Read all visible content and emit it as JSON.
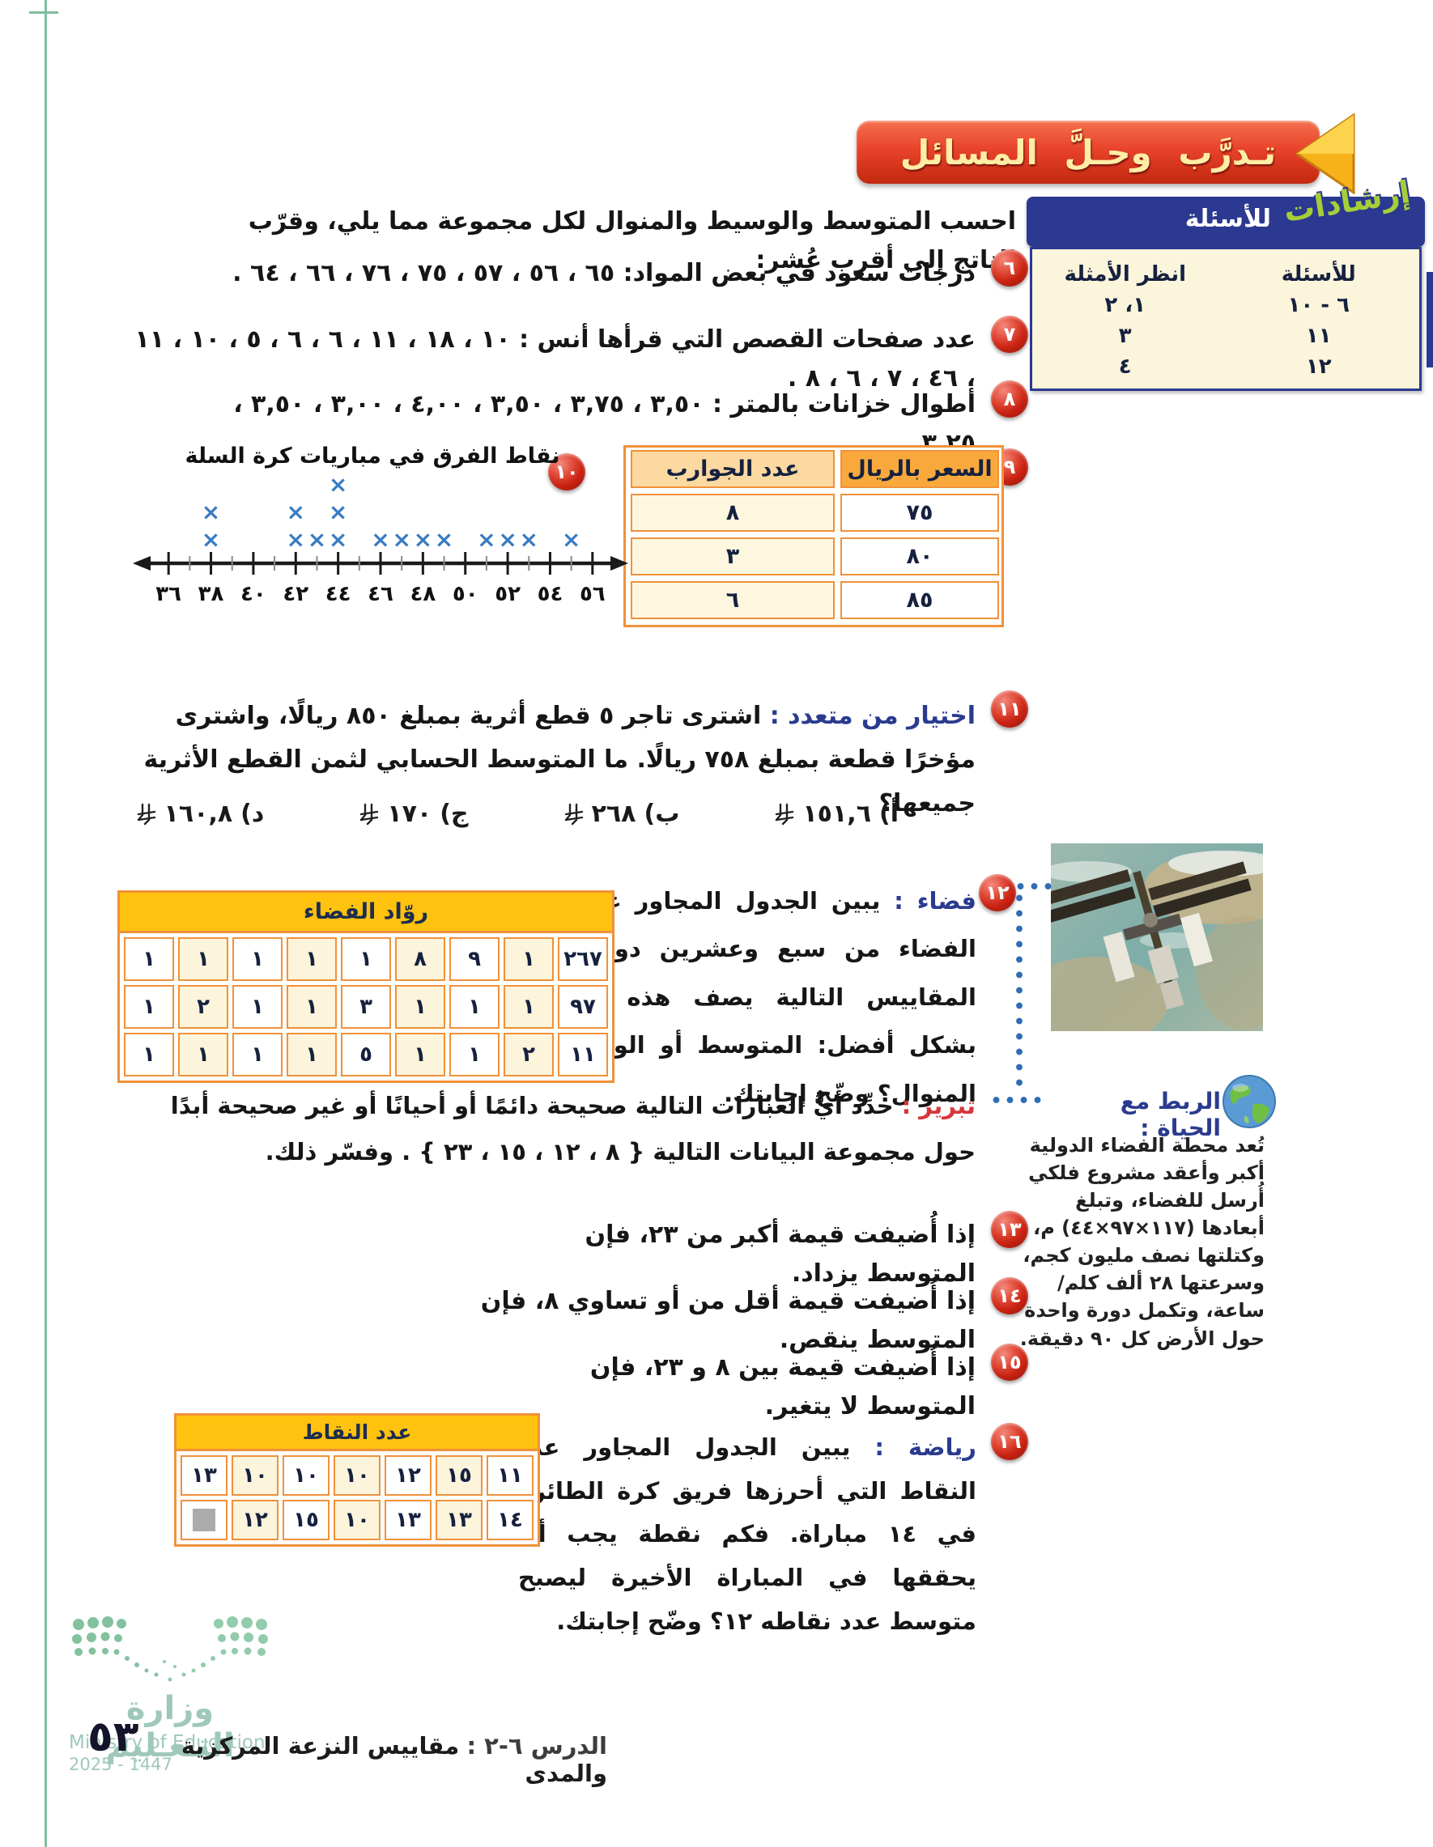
{
  "banner": {
    "title": "تـدرَّب وحـلَّ المسائل"
  },
  "intro": "احسب المتوسط والوسيط والمنوال لكل مجموعة مما يلي، وقرّب الناتج إلى أقرب عُشر:",
  "hints": {
    "badge": "إرشادات",
    "title": "للأسئلة",
    "col_questions": "للأسئلة",
    "col_examples": "انظر الأمثلة",
    "rows": [
      [
        "٦ - ١٠",
        "١، ٢"
      ],
      [
        "١١",
        "٣"
      ],
      [
        "١٢",
        "٤"
      ]
    ]
  },
  "q6": {
    "num": "٦",
    "text": "درجات سعود في بعض المواد: ٦٥ ، ٥٦ ، ٥٧ ، ٧٥ ، ٧٦ ، ٦٦ ، ٦٤ ."
  },
  "q7": {
    "num": "٧",
    "text": "عدد صفحات القصص التي قرأها أنس : ١٠ ، ١٨ ، ١١ ، ٦ ، ٦ ، ٥ ، ١٠ ، ١١ ، ٤٦ ، ٧ ، ٦ ، ٨ ."
  },
  "q8": {
    "num": "٨",
    "text": "أطوال خزانات بالمتر : ٣,٥٠ ، ٣,٧٥ ، ٣,٥٠ ، ٤,٠٠ ، ٣,٠٠ ، ٣,٥٠ ، ٣,٢٥ ."
  },
  "q9": {
    "num": "٩",
    "col_price": "السعر بالريال",
    "col_socks": "عدد الجوارب",
    "rows": [
      [
        "٧٥",
        "٨"
      ],
      [
        "٨٠",
        "٣"
      ],
      [
        "٨٥",
        "٦"
      ]
    ]
  },
  "q10": {
    "num": "١٠",
    "title": "نقاط الفرق في مباريات كرة السلة"
  },
  "q11": {
    "num": "١١",
    "label": "اختيار من متعدد :",
    "text": "اشترى تاجر ٥ قطع أثرية بمبلغ ٨٥٠ ريالًا، واشترى مؤخرًا قطعة بمبلغ ٧٥٨ ريالًا. ما المتوسط الحسابي لثمن القطع الأثرية جميعها؟",
    "currency": "ريال سعودي",
    "choices": [
      {
        "key": "أ)",
        "value": "١٥١,٦"
      },
      {
        "key": "ب)",
        "value": "٢٦٨"
      },
      {
        "key": "ج)",
        "value": "١٧٠"
      },
      {
        "key": "د)",
        "value": "١٦٠,٨"
      }
    ]
  },
  "q12": {
    "num": "١٢",
    "label": "فضاء :",
    "text": "يبين الجدول المجاور عدد روّاد الفضاء من سبع وعشرين دولة. فأيّ المقاييس التالية يصف هذه البيانات بشكل أفضل: المتوسط أو الوسيط أو المنوال؟ وضّح إجابتك.",
    "table_title": "روّاد الفضاء",
    "table_rows": [
      [
        "٢٦٧",
        "١",
        "٩",
        "٨",
        "١",
        "١",
        "١",
        "١",
        "١"
      ],
      [
        "٩٧",
        "١",
        "١",
        "١",
        "٣",
        "١",
        "١",
        "٢",
        "١"
      ],
      [
        "١١",
        "٢",
        "١",
        "١",
        "٥",
        "١",
        "١",
        "١",
        "١"
      ]
    ]
  },
  "reasoning": {
    "label": "تبرير :",
    "text": "حدِّد أيُّ العبارات التالية صحيحة دائمًا أو أحيانًا أو غير صحيحة أبدًا حول مجموعة البيانات التالية { ٨ ، ١٢ ، ١٥ ، ٢٣ } . وفسّر ذلك."
  },
  "q13": {
    "num": "١٣",
    "text": "إذا أُضيفت قيمة أكبر من ٢٣، فإن المتوسط يزداد."
  },
  "q14": {
    "num": "١٤",
    "text": "إذا أُضيفت قيمة أقل من أو تساوي ٨، فإن المتوسط ينقص."
  },
  "q15": {
    "num": "١٥",
    "text": "إذا أُضيفت قيمة بين ٨ و ٢٣، فإن المتوسط لا يتغير."
  },
  "q16": {
    "num": "١٦",
    "label": "رياضة :",
    "text": "يبين الجدول المجاور عدد النقاط التي أحرزها فريق كرة الطائرة في ١٤ مباراة. فكم نقطة يجب أن يحققها في المباراة الأخيرة ليصبح متوسط عدد نقاطه ١٢؟ وضّح إجابتك.",
    "table_title": "عدد النقاط",
    "table_rows": [
      [
        "١١",
        "١٥",
        "١٢",
        "١٠",
        "١٠",
        "١٠",
        "١٣"
      ],
      [
        "١٤",
        "١٣",
        "١٣",
        "١٠",
        "١٥",
        "١٢",
        ""
      ]
    ]
  },
  "life_link": {
    "title": "الربط مع الحياة :",
    "text": "تُعد محطة الفضاء الدولية أكبر وأعقد مشروع فلكي أُرسل للفضاء، وتبلغ أبعادها (١١٧×٩٧×٤٤) م، وكتلتها نصف مليون كجم، وسرعتها ٢٨ ألف كلم/ ساعة، وتكمل دورة واحدة حول الأرض كل ٩٠ دقيقة."
  },
  "footer": {
    "page_number": "٥٣",
    "lesson_label": "الدرس ٦-٢ :",
    "lesson_title": "مقاييس النزعة المركزية والمدى",
    "ministry_ar": "وزارة التـعـليم",
    "ministry_en": "Ministry of Education",
    "year": "2025 - 1447"
  },
  "chart_data": {
    "type": "scatter",
    "subtype": "dot-plot-with-x-marks",
    "title": "نقاط الفرق في مباريات كرة السلة",
    "points": [
      {
        "x": 38,
        "count": 2
      },
      {
        "x": 42,
        "count": 2
      },
      {
        "x": 43,
        "count": 1
      },
      {
        "x": 44,
        "count": 3
      },
      {
        "x": 46,
        "count": 1
      },
      {
        "x": 47,
        "count": 1
      },
      {
        "x": 48,
        "count": 1
      },
      {
        "x": 49,
        "count": 1
      },
      {
        "x": 51,
        "count": 1
      },
      {
        "x": 52,
        "count": 1
      },
      {
        "x": 53,
        "count": 1
      },
      {
        "x": 55,
        "count": 1
      }
    ],
    "xlim": [
      35,
      57
    ],
    "x_major_ticks": [
      36,
      38,
      40,
      42,
      44,
      46,
      48,
      50,
      52,
      54,
      56
    ],
    "tick_labels": [
      "٣٦",
      "٣٨",
      "٤٠",
      "٤٢",
      "٤٤",
      "٤٦",
      "٤٨",
      "٥٠",
      "٥٢",
      "٥٤",
      "٥٦"
    ],
    "marker": "×",
    "marker_color": "#3a7cc2",
    "grid": false
  },
  "colors": {
    "banner_red": "#e8432a",
    "hints_blue": "#2b3990",
    "hints_green": "#a6ce39",
    "table_border_orange": "#f0913a",
    "table_header_yellow": "#ffc20e",
    "badge_red": "#c92313",
    "label_blue": "#2a3b8f",
    "label_red": "#d6373b",
    "mark_blue": "#3a7cc2",
    "footer_green": "#9fc8bb"
  }
}
